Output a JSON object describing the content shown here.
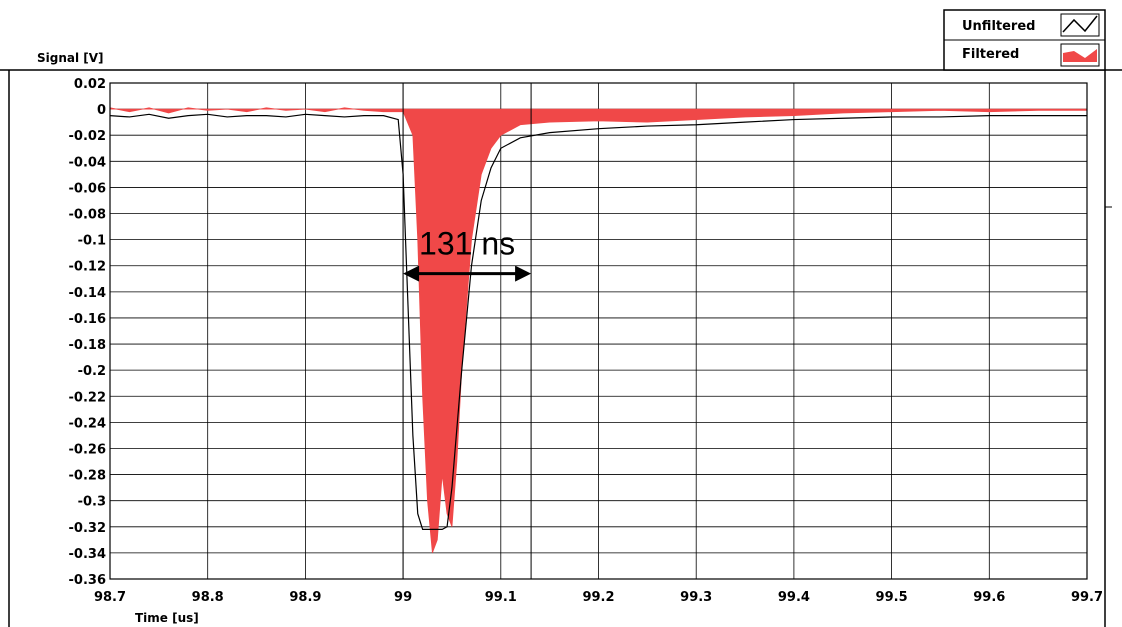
{
  "chart_data": {
    "type": "line",
    "ylabel": "Signal [V]",
    "xlabel": "Time [us]",
    "xlim": [
      98.7,
      99.7
    ],
    "ylim": [
      -0.36,
      0.02
    ],
    "x_ticks": [
      "98.7",
      "98.8",
      "98.9",
      "99",
      "99.1",
      "99.2",
      "99.3",
      "99.4",
      "99.5",
      "99.6",
      "99.7"
    ],
    "y_ticks": [
      "0.02",
      "0",
      "-0.02",
      "-0.04",
      "-0.06",
      "-0.08",
      "-0.1",
      "-0.12",
      "-0.14",
      "-0.16",
      "-0.18",
      "-0.2",
      "-0.22",
      "-0.24",
      "-0.26",
      "-0.28",
      "-0.3",
      "-0.32",
      "-0.34",
      "-0.36"
    ],
    "grid": true,
    "legend_position": "top-right",
    "series": [
      {
        "name": "Unfiltered",
        "color": "#000000",
        "style": "line",
        "x": [
          98.7,
          98.72,
          98.74,
          98.76,
          98.78,
          98.8,
          98.82,
          98.84,
          98.86,
          98.88,
          98.9,
          98.92,
          98.94,
          98.96,
          98.98,
          98.995,
          99.0,
          99.005,
          99.01,
          99.015,
          99.02,
          99.03,
          99.04,
          99.045,
          99.05,
          99.06,
          99.07,
          99.08,
          99.09,
          99.1,
          99.12,
          99.15,
          99.2,
          99.25,
          99.3,
          99.35,
          99.4,
          99.45,
          99.5,
          99.55,
          99.6,
          99.65,
          99.7
        ],
        "y": [
          -0.005,
          -0.006,
          -0.004,
          -0.007,
          -0.005,
          -0.004,
          -0.006,
          -0.005,
          -0.005,
          -0.006,
          -0.004,
          -0.005,
          -0.006,
          -0.005,
          -0.005,
          -0.008,
          -0.05,
          -0.15,
          -0.25,
          -0.31,
          -0.322,
          -0.322,
          -0.322,
          -0.32,
          -0.29,
          -0.2,
          -0.12,
          -0.07,
          -0.045,
          -0.03,
          -0.022,
          -0.018,
          -0.015,
          -0.013,
          -0.012,
          -0.01,
          -0.008,
          -0.007,
          -0.006,
          -0.006,
          -0.005,
          -0.005,
          -0.005
        ]
      },
      {
        "name": "Filtered",
        "color": "#f04848",
        "style": "filled-area",
        "x": [
          98.7,
          98.72,
          98.74,
          98.76,
          98.78,
          98.8,
          98.82,
          98.84,
          98.86,
          98.88,
          98.9,
          98.92,
          98.94,
          98.96,
          98.98,
          99.0,
          99.01,
          99.015,
          99.02,
          99.025,
          99.03,
          99.035,
          99.04,
          99.045,
          99.05,
          99.055,
          99.06,
          99.07,
          99.08,
          99.09,
          99.1,
          99.12,
          99.15,
          99.2,
          99.25,
          99.3,
          99.35,
          99.4,
          99.45,
          99.5,
          99.55,
          99.6,
          99.65,
          99.7
        ],
        "y": [
          0.001,
          -0.002,
          0.001,
          -0.003,
          0.001,
          -0.001,
          0.0,
          -0.002,
          0.001,
          -0.001,
          0.0,
          -0.002,
          0.001,
          -0.001,
          -0.002,
          -0.002,
          -0.02,
          -0.1,
          -0.22,
          -0.3,
          -0.34,
          -0.33,
          -0.28,
          -0.31,
          -0.32,
          -0.27,
          -0.2,
          -0.1,
          -0.05,
          -0.03,
          -0.02,
          -0.012,
          -0.01,
          -0.009,
          -0.01,
          -0.008,
          -0.006,
          -0.005,
          -0.003,
          -0.002,
          -0.001,
          -0.002,
          -0.001,
          -0.001
        ]
      }
    ],
    "annotations": [
      {
        "text": "131 ns",
        "type": "double-arrow",
        "x_start": 99.0,
        "x_end": 99.131,
        "y": -0.126
      }
    ],
    "reference_lines": [
      99.0,
      99.131
    ]
  }
}
